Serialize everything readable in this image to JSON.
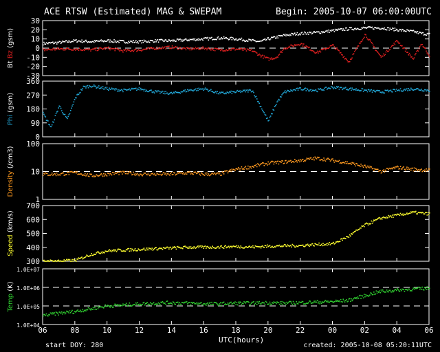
{
  "header": {
    "title": "ACE RTSW (Estimated) MAG & SWEPAM",
    "begin": "Begin: 2005-10-07 06:00:00UTC"
  },
  "footer": {
    "start": "start DOY: 280",
    "created": "created: 2005-10-08 05:20:11UTC"
  },
  "chart_data": {
    "type": "line",
    "x_axis": {
      "label": "UTC(hours)",
      "ticks": [
        "06",
        "08",
        "10",
        "12",
        "14",
        "16",
        "18",
        "20",
        "22",
        "00",
        "02",
        "04",
        "06"
      ],
      "range_hours": [
        0,
        24
      ]
    },
    "panels": [
      {
        "id": "mag",
        "ylabel_parts": [
          {
            "text": "Bt",
            "color": "#ffffff"
          },
          {
            "text": " ",
            "color": "#ffffff"
          },
          {
            "text": "Bz",
            "color": "#e02020"
          },
          {
            "text": " (gsm)",
            "color": "#ffffff"
          }
        ],
        "ylim": [
          -30,
          30
        ],
        "ticks": [
          "-30",
          "-20",
          "-10",
          "0",
          "10",
          "20",
          "30"
        ],
        "dashed": [
          0
        ],
        "series": [
          {
            "name": "Bt",
            "color": "#ffffff",
            "x": [
              0,
              1,
              2,
              3,
              4,
              5,
              6,
              7,
              8,
              9,
              10,
              11,
              12,
              13,
              13.5,
              14,
              14.5,
              15,
              16,
              17,
              18,
              19,
              20,
              21,
              22,
              23,
              23.5,
              24
            ],
            "y": [
              5,
              6,
              8,
              7,
              8,
              7,
              7,
              8,
              8,
              9,
              10,
              11,
              10,
              8,
              7,
              10,
              12,
              14,
              16,
              17,
              19,
              21,
              22,
              22,
              20,
              18,
              16,
              15
            ]
          },
          {
            "name": "Bz",
            "color": "#e02020",
            "x": [
              0,
              1,
              2,
              3,
              4,
              5,
              6,
              7,
              8,
              9,
              10,
              11,
              12,
              13,
              13.5,
              14,
              14.5,
              15,
              16,
              17,
              18,
              19,
              20,
              21,
              22,
              23,
              23.5,
              24
            ],
            "y": [
              -2,
              -1,
              -1,
              -2,
              0,
              -3,
              -2,
              0,
              1,
              -1,
              0,
              -2,
              -1,
              -3,
              -8,
              -12,
              -10,
              0,
              5,
              -5,
              3,
              -15,
              15,
              -10,
              8,
              -12,
              5,
              -8
            ]
          }
        ]
      },
      {
        "id": "phi",
        "ylabel_parts": [
          {
            "text": "Phi",
            "color": "#22a8d8"
          },
          {
            "text": " (gsm)",
            "color": "#ffffff"
          }
        ],
        "ylim": [
          0,
          360
        ],
        "ticks": [
          "0",
          "90",
          "180",
          "270",
          "360"
        ],
        "dashed": [],
        "series": [
          {
            "name": "Phi",
            "color": "#22a8d8",
            "x": [
              0,
              0.5,
              1,
              1.5,
              2,
              2.5,
              3,
              4,
              5,
              6,
              7,
              8,
              9,
              10,
              11,
              12,
              13,
              13.5,
              14,
              14.5,
              15,
              16,
              17,
              18,
              19,
              20,
              21,
              22,
              23,
              24
            ],
            "y": [
              150,
              60,
              200,
              110,
              250,
              320,
              330,
              310,
              300,
              310,
              290,
              280,
              300,
              310,
              280,
              290,
              300,
              200,
              100,
              220,
              290,
              310,
              300,
              320,
              310,
              300,
              290,
              300,
              310,
              300
            ]
          }
        ]
      },
      {
        "id": "density",
        "ylabel_parts": [
          {
            "text": "Density",
            "color": "#ff9a20"
          },
          {
            "text": " (/cm3)",
            "color": "#ffffff"
          }
        ],
        "ylim": [
          1,
          100
        ],
        "log": true,
        "ticks": [
          "1",
          "10",
          "100"
        ],
        "dashed": [
          10
        ],
        "series": [
          {
            "name": "Density",
            "color": "#ff9a20",
            "x": [
              0,
              1,
              2,
              3,
              4,
              5,
              6,
              7,
              8,
              9,
              10,
              11,
              12,
              13,
              14,
              15,
              16,
              17,
              18,
              19,
              20,
              21,
              22,
              23,
              24
            ],
            "y": [
              8,
              8,
              9,
              7,
              8,
              9,
              8,
              8,
              8,
              9,
              8,
              8,
              12,
              15,
              20,
              22,
              25,
              30,
              25,
              20,
              15,
              10,
              14,
              12,
              11
            ]
          }
        ]
      },
      {
        "id": "speed",
        "ylabel_parts": [
          {
            "text": "Speed",
            "color": "#ffff30"
          },
          {
            "text": " (km/s)",
            "color": "#ffffff"
          }
        ],
        "ylim": [
          300,
          700
        ],
        "ticks": [
          "300",
          "400",
          "500",
          "600",
          "700"
        ],
        "dashed": [],
        "series": [
          {
            "name": "Speed",
            "color": "#ffff30",
            "x": [
              0,
              1,
              2,
              3,
              4,
              5,
              6,
              7,
              8,
              9,
              10,
              11,
              12,
              13,
              14,
              15,
              16,
              17,
              18,
              19,
              20,
              21,
              22,
              23,
              24
            ],
            "y": [
              300,
              302,
              305,
              350,
              375,
              380,
              385,
              390,
              395,
              400,
              400,
              402,
              405,
              402,
              408,
              410,
              412,
              420,
              425,
              480,
              560,
              610,
              630,
              650,
              640
            ]
          }
        ]
      },
      {
        "id": "temp",
        "ylabel_parts": [
          {
            "text": "Temp",
            "color": "#30d030"
          },
          {
            "text": " (K)",
            "color": "#ffffff"
          }
        ],
        "ylim": [
          10000,
          10000000
        ],
        "log": true,
        "ticks": [
          "1.0E+04",
          "1.0E+05",
          "1.0E+06",
          "1.0E+07"
        ],
        "dashed": [
          100000,
          1000000
        ],
        "series": [
          {
            "name": "Temp",
            "color": "#30d030",
            "x": [
              0,
              1,
              2,
              3,
              4,
              5,
              6,
              7,
              8,
              9,
              10,
              11,
              12,
              13,
              14,
              15,
              16,
              17,
              18,
              19,
              20,
              21,
              22,
              23,
              24
            ],
            "y": [
              30000,
              40000,
              50000,
              70000,
              100000,
              110000,
              130000,
              140000,
              150000,
              140000,
              130000,
              130000,
              140000,
              140000,
              150000,
              140000,
              150000,
              160000,
              170000,
              200000,
              350000,
              600000,
              700000,
              800000,
              900000
            ]
          }
        ]
      }
    ]
  }
}
